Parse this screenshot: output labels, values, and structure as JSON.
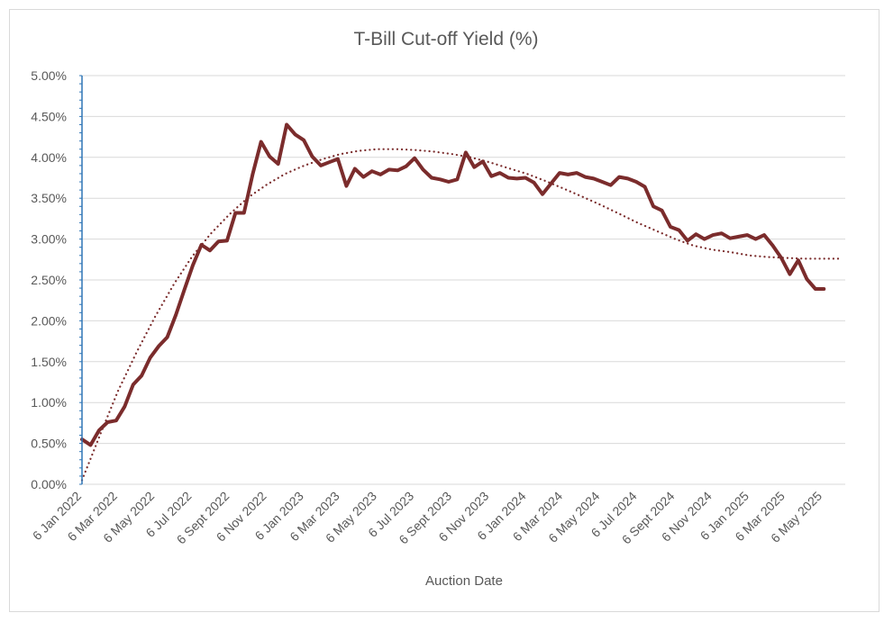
{
  "chart_data": {
    "type": "line",
    "title": "T-Bill Cut-off Yield (%)",
    "xlabel": "Auction Date",
    "ylabel": "",
    "ylim": [
      0,
      0.05
    ],
    "xlim": [
      "2022-01-06",
      "2025-06-12"
    ],
    "y_tick_labels": [
      "0.00%",
      "0.50%",
      "1.00%",
      "1.50%",
      "2.00%",
      "2.50%",
      "3.00%",
      "3.50%",
      "4.00%",
      "4.50%",
      "5.00%"
    ],
    "x_tick_labels": [
      "6 Jan 2022",
      "6 Mar 2022",
      "6 May 2022",
      "6 Jul 2022",
      "6 Sept 2022",
      "6 Nov 2022",
      "6 Jan 2023",
      "6 Mar 2023",
      "6 May 2023",
      "6 Jul 2023",
      "6 Sept 2023",
      "6 Nov 2023",
      "6 Jan 2024",
      "6 Mar 2024",
      "6 May 2024",
      "6 Jul 2024",
      "6 Sept 2024",
      "6 Nov 2024",
      "6 Jan 2025",
      "6 Mar 2025",
      "6 May 2025"
    ],
    "x_tick_dates": [
      "2022-01-06",
      "2022-03-06",
      "2022-05-06",
      "2022-07-06",
      "2022-09-06",
      "2022-11-06",
      "2023-01-06",
      "2023-03-06",
      "2023-05-06",
      "2023-07-06",
      "2023-09-06",
      "2023-11-06",
      "2024-01-06",
      "2024-03-06",
      "2024-05-06",
      "2024-07-06",
      "2024-09-06",
      "2024-11-06",
      "2025-01-06",
      "2025-03-06",
      "2025-05-06"
    ],
    "grid": true,
    "colors": {
      "series": "#7b2c2c",
      "trend": "#7b2c2c",
      "grid": "#d9d9d9",
      "text": "#595959",
      "y_axis": "#2e75b6"
    },
    "series": [
      {
        "style": "solid",
        "x": [
          "2022-01-06",
          "2022-01-20",
          "2022-02-03",
          "2022-02-17",
          "2022-03-03",
          "2022-03-17",
          "2022-03-31",
          "2022-04-14",
          "2022-04-28",
          "2022-05-12",
          "2022-05-26",
          "2022-06-09",
          "2022-06-23",
          "2022-07-07",
          "2022-07-21",
          "2022-08-04",
          "2022-08-18",
          "2022-09-01",
          "2022-09-15",
          "2022-09-29",
          "2022-10-13",
          "2022-10-27",
          "2022-11-10",
          "2022-11-24",
          "2022-12-08",
          "2022-12-22",
          "2023-01-05",
          "2023-01-19",
          "2023-02-02",
          "2023-02-16",
          "2023-03-02",
          "2023-03-16",
          "2023-03-30",
          "2023-04-13",
          "2023-04-27",
          "2023-05-11",
          "2023-05-25",
          "2023-06-08",
          "2023-06-22",
          "2023-07-06",
          "2023-07-20",
          "2023-08-03",
          "2023-08-17",
          "2023-08-31",
          "2023-09-14",
          "2023-09-28",
          "2023-10-12",
          "2023-10-26",
          "2023-11-09",
          "2023-11-23",
          "2023-12-07",
          "2023-12-21",
          "2024-01-04",
          "2024-01-18",
          "2024-02-01",
          "2024-02-15",
          "2024-02-29",
          "2024-03-14",
          "2024-03-28",
          "2024-04-11",
          "2024-04-25",
          "2024-05-09",
          "2024-05-23",
          "2024-06-06",
          "2024-06-20",
          "2024-07-04",
          "2024-07-18",
          "2024-08-01",
          "2024-08-15",
          "2024-08-29",
          "2024-09-12",
          "2024-09-26",
          "2024-10-10",
          "2024-10-24",
          "2024-11-07",
          "2024-11-21",
          "2024-12-05",
          "2024-12-19",
          "2025-01-02",
          "2025-01-16",
          "2025-01-30",
          "2025-02-13",
          "2025-02-27",
          "2025-03-13",
          "2025-03-27",
          "2025-04-10",
          "2025-04-24",
          "2025-05-08"
        ],
        "values": [
          0.0055,
          0.0048,
          0.0066,
          0.0076,
          0.0078,
          0.0095,
          0.0122,
          0.0133,
          0.0155,
          0.0169,
          0.018,
          0.0207,
          0.0238,
          0.0268,
          0.0293,
          0.0286,
          0.0297,
          0.0298,
          0.0332,
          0.0332,
          0.0379,
          0.0419,
          0.0401,
          0.0392,
          0.044,
          0.0428,
          0.0421,
          0.0401,
          0.039,
          0.0394,
          0.0398,
          0.0365,
          0.0386,
          0.0376,
          0.0383,
          0.0379,
          0.0385,
          0.0384,
          0.0389,
          0.0399,
          0.0385,
          0.0375,
          0.0373,
          0.037,
          0.0373,
          0.0406,
          0.0388,
          0.0395,
          0.0377,
          0.0381,
          0.0375,
          0.0374,
          0.0375,
          0.0369,
          0.0355,
          0.0368,
          0.0381,
          0.0379,
          0.0381,
          0.0376,
          0.0374,
          0.037,
          0.0366,
          0.0376,
          0.0374,
          0.037,
          0.0364,
          0.034,
          0.0335,
          0.0315,
          0.0311,
          0.0298,
          0.0306,
          0.03,
          0.0305,
          0.0307,
          0.0301,
          0.0303,
          0.0305,
          0.03,
          0.0305,
          0.0292,
          0.0277,
          0.0257,
          0.0274,
          0.0251,
          0.0239,
          0.0239
        ]
      },
      {
        "style": "dotted",
        "x": [
          "2022-01-06",
          "2022-02-06",
          "2022-03-06",
          "2022-04-06",
          "2022-05-06",
          "2022-06-06",
          "2022-07-06",
          "2022-08-06",
          "2022-09-06",
          "2022-10-06",
          "2022-11-06",
          "2022-12-06",
          "2023-01-06",
          "2023-02-06",
          "2023-03-06",
          "2023-04-06",
          "2023-05-06",
          "2023-06-06",
          "2023-07-06",
          "2023-08-06",
          "2023-09-06",
          "2023-10-06",
          "2023-11-06",
          "2023-12-06",
          "2024-01-06",
          "2024-02-06",
          "2024-03-06",
          "2024-04-06",
          "2024-05-06",
          "2024-06-06",
          "2024-07-06",
          "2024-08-06",
          "2024-09-06",
          "2024-10-06",
          "2024-11-06",
          "2024-12-06",
          "2025-01-06",
          "2025-02-06",
          "2025-03-06",
          "2025-04-06",
          "2025-05-06",
          "2025-06-06"
        ],
        "values": [
          0.0005,
          0.0063,
          0.0114,
          0.0162,
          0.0205,
          0.0245,
          0.0279,
          0.0307,
          0.0331,
          0.0351,
          0.0367,
          0.038,
          0.039,
          0.0398,
          0.0404,
          0.0408,
          0.041,
          0.041,
          0.0409,
          0.0407,
          0.0404,
          0.04,
          0.0394,
          0.0387,
          0.038,
          0.0371,
          0.0362,
          0.0352,
          0.0342,
          0.0331,
          0.032,
          0.031,
          0.03,
          0.0292,
          0.0287,
          0.0284,
          0.028,
          0.0278,
          0.0277,
          0.0276,
          0.0276,
          0.0276
        ]
      }
    ]
  }
}
